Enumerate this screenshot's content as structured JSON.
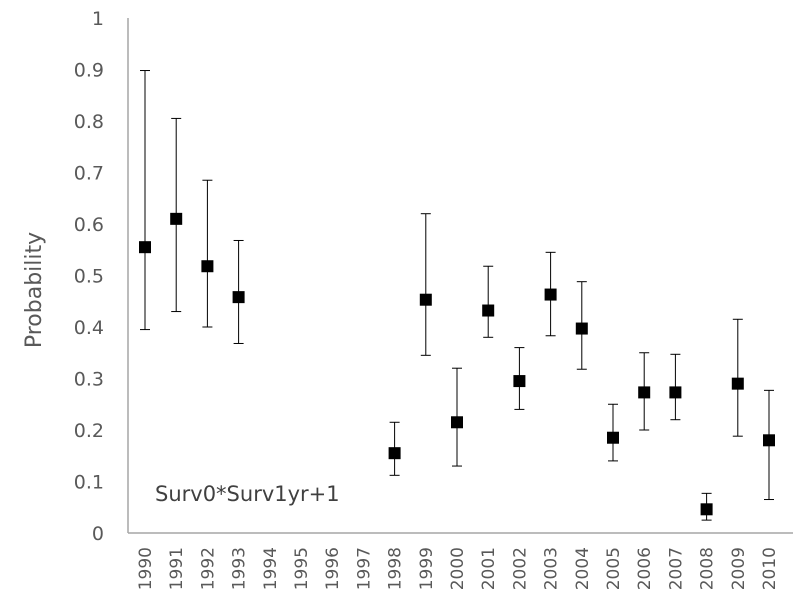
{
  "chart_data": {
    "type": "scatter",
    "title": "",
    "xlabel": "",
    "ylabel": "Probability",
    "annotation": "Surv0*Surv1yr+1",
    "ylim": [
      0,
      1
    ],
    "y_ticks": [
      "0",
      "0.1",
      "0.2",
      "0.3",
      "0.4",
      "0.5",
      "0.6",
      "0.7",
      "0.8",
      "0.9",
      "1"
    ],
    "categories": [
      "1990",
      "1991",
      "1992",
      "1993",
      "1994",
      "1995",
      "1996",
      "1997",
      "1998",
      "1999",
      "2000",
      "2001",
      "2002",
      "2003",
      "2004",
      "2005",
      "2006",
      "2007",
      "2008",
      "2009",
      "2010"
    ],
    "grid": false,
    "legend": "none",
    "marker": "square",
    "marker_color": "#000000",
    "series": [
      {
        "values": [
          0.555,
          0.61,
          0.518,
          0.458,
          null,
          null,
          null,
          null,
          0.155,
          0.453,
          0.215,
          0.432,
          0.295,
          0.463,
          0.397,
          0.185,
          0.273,
          0.273,
          0.046,
          0.29,
          0.18
        ],
        "error_low": [
          0.395,
          0.43,
          0.4,
          0.368,
          null,
          null,
          null,
          null,
          0.112,
          0.345,
          0.13,
          0.38,
          0.24,
          0.383,
          0.318,
          0.14,
          0.2,
          0.22,
          0.025,
          0.188,
          0.065
        ],
        "error_high": [
          0.898,
          0.805,
          0.685,
          0.568,
          null,
          null,
          null,
          null,
          0.215,
          0.62,
          0.32,
          0.518,
          0.36,
          0.545,
          0.488,
          0.25,
          0.35,
          0.347,
          0.077,
          0.415,
          0.277
        ]
      }
    ]
  }
}
